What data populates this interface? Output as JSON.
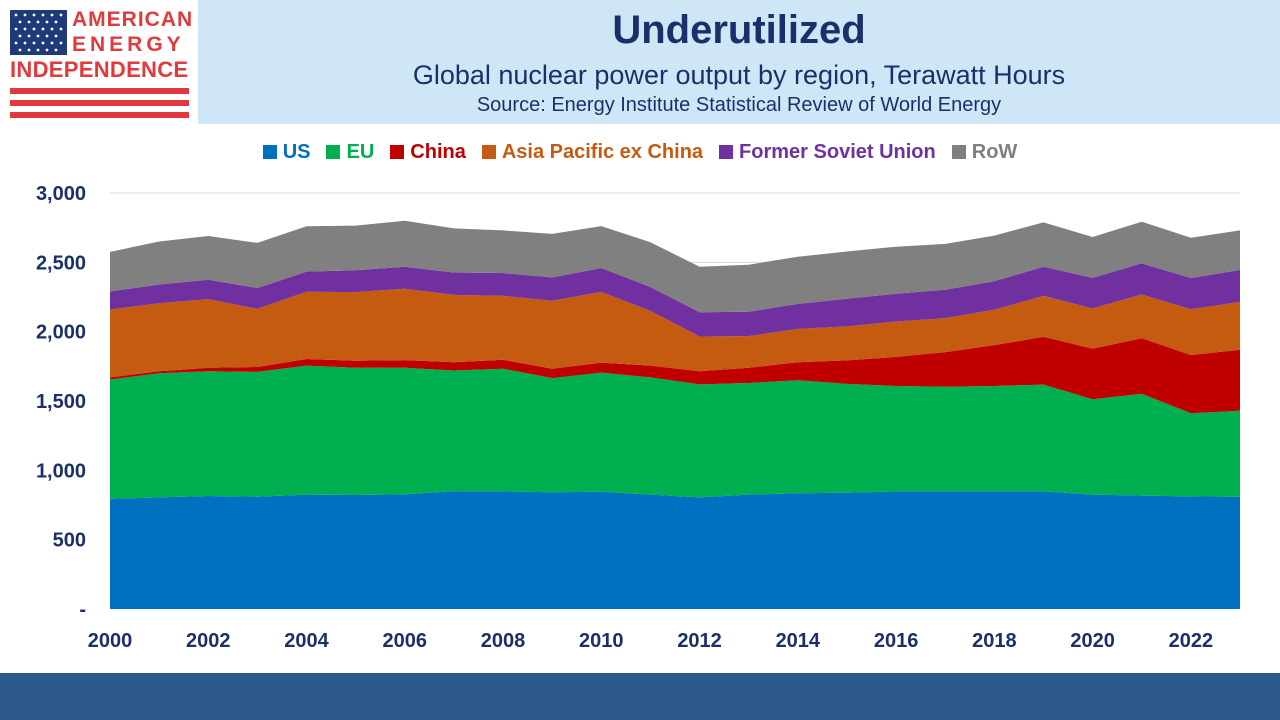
{
  "logo": {
    "line1": "AMERICAN",
    "line2": "ENERGY",
    "line3": "INDEPENDENCE"
  },
  "colors": {
    "header_bg": "#cfe6f7",
    "title_text": "#1b2f6b",
    "footer_bar": "#2b5a8a",
    "logo_red": "#e03a3e",
    "logo_blue": "#1f3a78"
  },
  "chart_data": {
    "type": "area",
    "stacked": true,
    "title": "Underutilized",
    "subtitle": "Global nuclear power output by region, Terawatt Hours",
    "source": "Source: Energy Institute Statistical Review of World Energy",
    "legend_position": "top",
    "grid": true,
    "ylim": [
      0,
      3000
    ],
    "y_ticks": [
      "-",
      "500",
      "1,000",
      "1,500",
      "2,000",
      "2,500",
      "3,000"
    ],
    "x_ticks": [
      "2000",
      "2002",
      "2004",
      "2006",
      "2008",
      "2010",
      "2012",
      "2014",
      "2016",
      "2018",
      "2020",
      "2022"
    ],
    "x": [
      2000,
      2001,
      2002,
      2003,
      2004,
      2005,
      2006,
      2007,
      2008,
      2009,
      2010,
      2011,
      2012,
      2013,
      2014,
      2015,
      2016,
      2017,
      2018,
      2019,
      2020,
      2021,
      2022,
      2023
    ],
    "series": [
      {
        "name": "US",
        "color": "#0070c0",
        "label_color": "#0070c0",
        "values": [
          795,
          805,
          815,
          810,
          825,
          822,
          828,
          850,
          848,
          842,
          845,
          825,
          805,
          825,
          835,
          838,
          848,
          848,
          848,
          848,
          825,
          818,
          812,
          810
        ]
      },
      {
        "name": "EU",
        "color": "#00b050",
        "label_color": "#00b050",
        "values": [
          860,
          895,
          900,
          900,
          930,
          918,
          912,
          870,
          885,
          823,
          860,
          845,
          815,
          805,
          815,
          785,
          760,
          755,
          760,
          770,
          688,
          735,
          600,
          620
        ]
      },
      {
        "name": "China",
        "color": "#c00000",
        "label_color": "#c00000",
        "values": [
          15,
          15,
          25,
          35,
          48,
          50,
          55,
          60,
          65,
          68,
          72,
          85,
          95,
          110,
          130,
          170,
          210,
          250,
          295,
          345,
          365,
          400,
          420,
          440
        ]
      },
      {
        "name": "Asia Pacific ex China",
        "color": "#c55a11",
        "label_color": "#c55a11",
        "values": [
          490,
          490,
          495,
          420,
          485,
          495,
          515,
          485,
          460,
          490,
          510,
          395,
          250,
          228,
          240,
          245,
          255,
          245,
          255,
          295,
          290,
          315,
          330,
          345
        ]
      },
      {
        "name": "Former Soviet Union",
        "color": "#7030a0",
        "label_color": "#7030a0",
        "values": [
          130,
          135,
          140,
          150,
          145,
          158,
          158,
          162,
          165,
          168,
          172,
          172,
          175,
          175,
          180,
          200,
          200,
          205,
          205,
          210,
          220,
          225,
          225,
          230
        ]
      },
      {
        "name": "RoW",
        "color": "#808080",
        "label_color": "#7f7f7f",
        "values": [
          285,
          310,
          315,
          325,
          327,
          322,
          332,
          318,
          307,
          314,
          302,
          323,
          328,
          340,
          340,
          340,
          340,
          330,
          330,
          320,
          295,
          300,
          290,
          285
        ]
      }
    ]
  }
}
